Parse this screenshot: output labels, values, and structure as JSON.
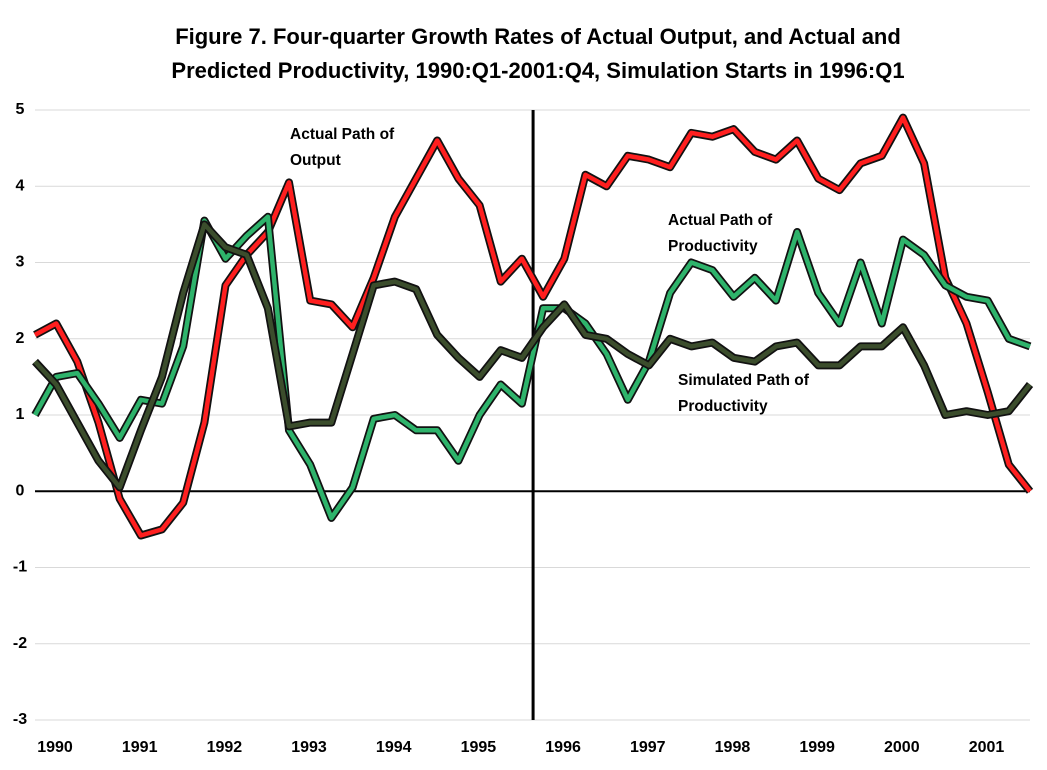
{
  "chart_data": {
    "type": "line",
    "title": [
      "Figure 7. Four-quarter Growth Rates of Actual Output, and Actual and",
      "Predicted Productivity, 1990:Q1-2001:Q4, Simulation Starts in 1996:Q1"
    ],
    "categories": [
      "1990",
      null,
      null,
      null,
      "1991",
      null,
      null,
      null,
      "1992",
      null,
      null,
      null,
      "1993",
      null,
      null,
      null,
      "1994",
      null,
      null,
      null,
      "1995",
      null,
      null,
      null,
      "1996",
      null,
      null,
      null,
      "1997",
      null,
      null,
      null,
      "1998",
      null,
      null,
      null,
      "1999",
      null,
      null,
      null,
      "2000",
      null,
      null,
      null,
      "2001",
      null,
      null,
      null
    ],
    "series": [
      {
        "name": [
          "Actual Path of",
          "Output"
        ],
        "color": "#ff1f1f",
        "values": [
          2.05,
          2.2,
          1.7,
          0.9,
          -0.1,
          -0.58,
          -0.5,
          -0.15,
          0.9,
          2.7,
          3.1,
          3.4,
          4.05,
          2.5,
          2.45,
          2.15,
          2.8,
          3.6,
          4.1,
          4.6,
          4.1,
          3.75,
          2.75,
          3.05,
          2.55,
          3.05,
          4.15,
          4.0,
          4.4,
          4.35,
          4.25,
          4.7,
          4.65,
          4.75,
          4.45,
          4.35,
          4.6,
          4.1,
          3.95,
          4.3,
          4.4,
          4.9,
          4.3,
          2.8,
          2.2,
          1.3,
          0.35,
          0.0
        ]
      },
      {
        "name": [
          "Actual Path of",
          "Productivity"
        ],
        "color": "#2eb36b",
        "values": [
          1.0,
          1.5,
          1.55,
          1.15,
          0.7,
          1.2,
          1.15,
          1.9,
          3.55,
          3.05,
          3.35,
          3.6,
          0.8,
          0.35,
          -0.35,
          0.05,
          0.95,
          1.0,
          0.8,
          0.8,
          0.4,
          1.0,
          1.4,
          1.15,
          2.4,
          2.4,
          2.2,
          1.8,
          1.2,
          1.7,
          2.6,
          3.0,
          2.9,
          2.55,
          2.8,
          2.5,
          3.4,
          2.6,
          2.2,
          3.0,
          2.2,
          3.3,
          3.1,
          2.7,
          2.55,
          2.5,
          2.0,
          1.9
        ]
      },
      {
        "name": [
          "Simulated Path of",
          "Productivity"
        ],
        "color": "#3b4d2c",
        "values": [
          1.7,
          1.4,
          0.9,
          0.4,
          0.05,
          0.8,
          1.5,
          2.6,
          3.5,
          3.2,
          3.1,
          2.4,
          0.85,
          0.9,
          0.9,
          1.8,
          2.7,
          2.75,
          2.65,
          2.05,
          1.75,
          1.5,
          1.85,
          1.75,
          2.15,
          2.45,
          2.05,
          2.0,
          1.8,
          1.65,
          2.0,
          1.9,
          1.95,
          1.75,
          1.7,
          1.9,
          1.95,
          1.65,
          1.65,
          1.9,
          1.9,
          2.15,
          1.65,
          1.0,
          1.05,
          1.0,
          1.05,
          1.4
        ]
      }
    ],
    "ylim": [
      -3,
      5
    ],
    "yticks": [
      -3,
      -2,
      -1,
      0,
      1,
      2,
      3,
      4,
      5
    ],
    "grid": true
  }
}
